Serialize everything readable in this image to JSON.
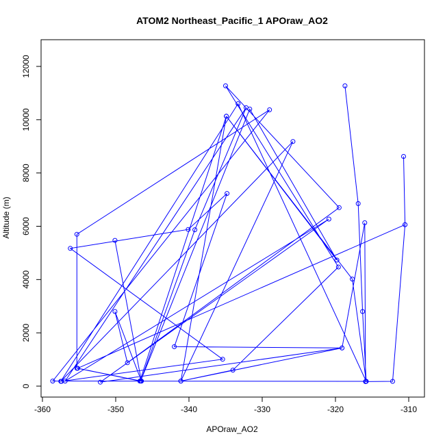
{
  "chart_data": {
    "type": "line",
    "title": "ATOM2 Northeast_Pacific_1 APOraw_AO2",
    "xlabel": "APOraw_AO2",
    "ylabel": "Altitude (m)",
    "xlim": [
      -360,
      -310
    ],
    "ylim": [
      0,
      12000
    ],
    "xticks": [
      -360,
      -350,
      -340,
      -330,
      -320,
      -310
    ],
    "yticks": [
      0,
      2000,
      4000,
      6000,
      8000,
      10000,
      12000
    ],
    "grid": false,
    "legend": "none",
    "series": [
      {
        "color": "#0000ff",
        "marker": "open-circle",
        "points": [
          [
            -318.7,
            11270
          ],
          [
            -316.9,
            6850
          ],
          [
            -316.3,
            2800
          ],
          [
            -315.8,
            180
          ],
          [
            -317.7,
            4020
          ],
          [
            -334.9,
            10130
          ],
          [
            -319.8,
            4730
          ],
          [
            -331.7,
            10400
          ],
          [
            -346.6,
            190
          ],
          [
            -339.2,
            5870
          ],
          [
            -332.2,
            10450
          ],
          [
            -356.9,
            190
          ],
          [
            -320.9,
            6270
          ],
          [
            -352.1,
            150
          ],
          [
            -319.1,
            1430
          ],
          [
            -316.0,
            6130
          ],
          [
            -315.9,
            170
          ],
          [
            -312.2,
            180
          ],
          [
            -310.5,
            6060
          ],
          [
            -310.7,
            8620
          ],
          [
            -310.5,
            6060
          ],
          [
            -355.2,
            670
          ],
          [
            -346.7,
            190
          ],
          [
            -334.9,
            10130
          ],
          [
            -341.1,
            190
          ],
          [
            -325.8,
            9180
          ],
          [
            -357.5,
            180
          ],
          [
            -333.3,
            10600
          ],
          [
            -315.8,
            180
          ],
          [
            -358.6,
            190
          ],
          [
            -329.0,
            10370
          ],
          [
            -355.3,
            5700
          ],
          [
            -355.3,
            670
          ],
          [
            -346.5,
            190
          ],
          [
            -350.1,
            5470
          ],
          [
            -346.5,
            190
          ],
          [
            -350.1,
            2800
          ],
          [
            -348.4,
            880
          ],
          [
            -319.5,
            6700
          ],
          [
            -335.0,
            11270
          ],
          [
            -319.6,
            4470
          ],
          [
            -334.0,
            600
          ],
          [
            -341.1,
            190
          ],
          [
            -319.1,
            1430
          ],
          [
            -342.0,
            1480
          ],
          [
            -334.8,
            7230
          ],
          [
            -340.1,
            5880
          ],
          [
            -356.2,
            5170
          ],
          [
            -335.4,
            1010
          ],
          [
            -357.4,
            180
          ]
        ]
      }
    ]
  }
}
